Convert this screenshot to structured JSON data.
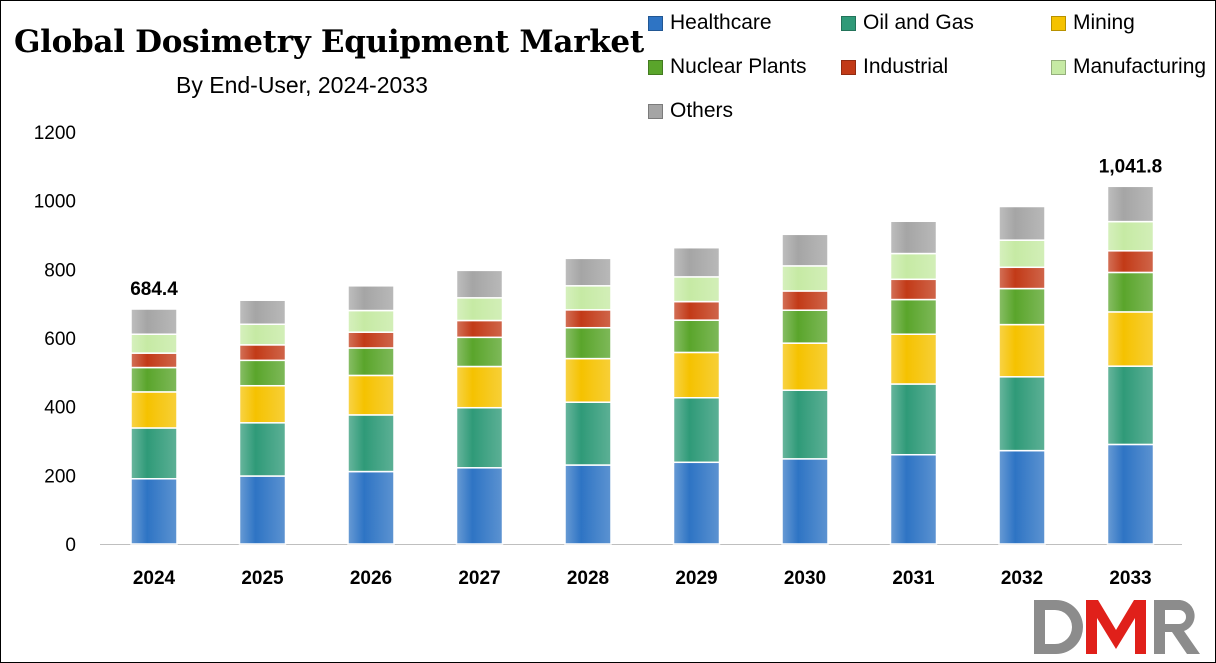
{
  "chart_data": {
    "type": "bar",
    "stacked": true,
    "title": "Global Dosimetry Equipment Market",
    "subtitle": "By End-User, 2024-2033",
    "categories": [
      "2024",
      "2025",
      "2026",
      "2027",
      "2028",
      "2029",
      "2030",
      "2031",
      "2032",
      "2033"
    ],
    "ylim": [
      0,
      1200
    ],
    "yticks": [
      0,
      200,
      400,
      600,
      800,
      1000,
      1200
    ],
    "grid": false,
    "legend_position": "top-right",
    "series": [
      {
        "name": "Healthcare",
        "color": "#2e74c4",
        "values": [
          190,
          198,
          211,
          222,
          230,
          238,
          248,
          260,
          272,
          290
        ]
      },
      {
        "name": "Oil and Gas",
        "color": "#2f9a78",
        "values": [
          148,
          155,
          165,
          175,
          183,
          188,
          200,
          206,
          215,
          228
        ]
      },
      {
        "name": "Mining",
        "color": "#f5c200",
        "values": [
          105,
          108,
          115,
          120,
          127,
          132,
          137,
          145,
          152,
          158
        ]
      },
      {
        "name": "Nuclear Plants",
        "color": "#5aa52b",
        "values": [
          71,
          74,
          80,
          85,
          90,
          94,
          96,
          101,
          105,
          115
        ]
      },
      {
        "name": "Industrial",
        "color": "#c23a17",
        "values": [
          42,
          45,
          46,
          49,
          52,
          54,
          56,
          59,
          62,
          63
        ]
      },
      {
        "name": "Manufacturing",
        "color": "#c6eaa4",
        "values": [
          55,
          60,
          63,
          66,
          70,
          72,
          73,
          75,
          79,
          85
        ]
      },
      {
        "name": "Others",
        "color": "#a5a5a5",
        "values": [
          73.4,
          70,
          72,
          80,
          80,
          85,
          92,
          94,
          98,
          102.8
        ]
      }
    ],
    "totals": [
      684.4,
      710,
      752,
      797,
      832,
      863,
      902,
      940,
      983,
      1041.8
    ],
    "data_labels": [
      {
        "index": 0,
        "text": "684.4"
      },
      {
        "index": 9,
        "text": "1,041.8"
      }
    ]
  },
  "logo": {
    "text": "DMR"
  }
}
